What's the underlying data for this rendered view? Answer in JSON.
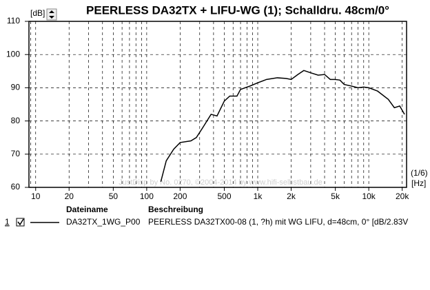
{
  "chart_data": {
    "type": "line",
    "title": "PEERLESS DA32TX + LIFU-WG (1); Schalldru. 48cm/0°",
    "y_label": "[dB]",
    "x_resolution": "(1/6)",
    "x_label": "[Hz]",
    "watermark": "JustDisp by No. 0270, ©2004-2014 by www.hifi-selbstbau.de",
    "log_x": true,
    "grid": true,
    "xlim": [
      8.7,
      21900
    ],
    "ylim": [
      60,
      110
    ],
    "xticks": [
      10,
      20,
      50,
      100,
      200,
      500,
      {
        "value": 1000,
        "label": "1k"
      },
      {
        "value": 2000,
        "label": "2k"
      },
      {
        "value": 5000,
        "label": "5k"
      },
      {
        "value": 10000,
        "label": "10k"
      },
      {
        "value": 20000,
        "label": "20k"
      }
    ],
    "yticks": [
      60,
      70,
      80,
      90,
      100,
      110
    ],
    "x": [
      134,
      150,
      175,
      200,
      250,
      280,
      320,
      380,
      430,
      500,
      560,
      650,
      700,
      850,
      1000,
      1200,
      1500,
      1800,
      2000,
      2300,
      2600,
      3000,
      3500,
      4000,
      4500,
      5000,
      5500,
      6000,
      7000,
      8000,
      9000,
      10000,
      12000,
      15000,
      17000,
      19000,
      21000
    ],
    "series": [
      {
        "name": "DA32TX_1WG_P00",
        "description": "PEERLESS DA32TX00-08 (1, ?h) mit WG LIFU, d=48cm, 0° [dB/2.83V",
        "color": "#000000",
        "values": [
          61.7,
          68,
          71.5,
          73.5,
          74,
          75,
          78,
          82,
          81.5,
          86,
          87.5,
          87.5,
          89.5,
          90.5,
          91.5,
          92.5,
          93,
          92.8,
          92.5,
          94,
          95.2,
          94.5,
          93.8,
          94,
          92.5,
          92.5,
          92.3,
          91,
          90.5,
          90,
          90.2,
          90,
          89,
          86.5,
          84,
          84.5,
          82
        ]
      }
    ],
    "legend": {
      "headers": [
        "Dateiname",
        "Beschreibung"
      ],
      "index": "1"
    }
  }
}
